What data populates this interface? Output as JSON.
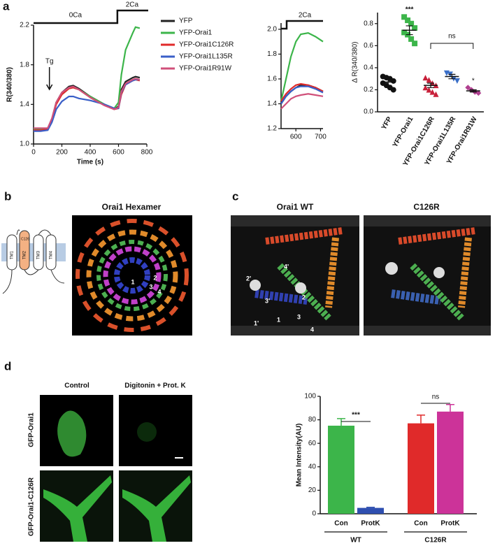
{
  "figure": {
    "panel_labels": [
      "a",
      "b",
      "c",
      "d"
    ],
    "b": {
      "title": "Orai1 Hexamer",
      "topology_labels": [
        "TM1",
        "TM2",
        "TM3",
        "TM4",
        "C126"
      ],
      "structure_labels": [
        "1",
        "2",
        "3",
        "4"
      ]
    },
    "c": {
      "titles": [
        "Orai1 WT",
        "C126R"
      ],
      "structure_labels": [
        "2'",
        "4'",
        "3'",
        "2",
        "1'",
        "1",
        "3",
        "4"
      ]
    },
    "d": {
      "column_titles": [
        "Control",
        "Digitonin + Prot. K"
      ],
      "row_labels": [
        "GFP-Orai1",
        "GFP-Orai1-C126R"
      ]
    }
  },
  "chart_data": [
    {
      "type": "line",
      "x_label": "Time (s)",
      "y_label": "R(340/380)",
      "annotations": [
        "0Ca",
        "2Ca",
        "Tg"
      ],
      "x": [
        0,
        50,
        100,
        130,
        160,
        200,
        250,
        280,
        320,
        400,
        500,
        570,
        600,
        620,
        650,
        700,
        720,
        750
      ],
      "xlim": [
        0,
        800
      ],
      "xticks": [
        0,
        200,
        400,
        600,
        800
      ],
      "ylim": [
        1.0,
        2.2
      ],
      "yticks": [
        {
          "value": 1.0,
          "label": "1.0"
        },
        1.4,
        1.8,
        2.2
      ],
      "series": [
        {
          "name": "YFP",
          "color": "#222222",
          "values": [
            1.15,
            1.15,
            1.15,
            1.25,
            1.42,
            1.52,
            1.58,
            1.59,
            1.56,
            1.48,
            1.4,
            1.35,
            1.38,
            1.55,
            1.63,
            1.67,
            1.68,
            1.67
          ]
        },
        {
          "name": "YFP-Orai1",
          "color": "#3cb54a",
          "values": [
            1.15,
            1.15,
            1.16,
            1.25,
            1.42,
            1.5,
            1.56,
            1.57,
            1.55,
            1.48,
            1.4,
            1.36,
            1.42,
            1.7,
            1.95,
            2.12,
            2.18,
            2.17
          ]
        },
        {
          "name": "YFP-Orai1C126R",
          "color": "#e02a2a",
          "values": [
            1.14,
            1.14,
            1.15,
            1.24,
            1.4,
            1.5,
            1.56,
            1.57,
            1.55,
            1.47,
            1.39,
            1.35,
            1.36,
            1.5,
            1.6,
            1.64,
            1.65,
            1.64
          ]
        },
        {
          "name": "YFP-Orai1L135R",
          "color": "#3a5fc8",
          "values": [
            1.13,
            1.13,
            1.14,
            1.22,
            1.35,
            1.43,
            1.48,
            1.48,
            1.46,
            1.44,
            1.4,
            1.36,
            1.36,
            1.52,
            1.6,
            1.64,
            1.65,
            1.65
          ]
        },
        {
          "name": "YFP-Orai1R91W",
          "color": "#d0507a",
          "values": [
            1.16,
            1.16,
            1.16,
            1.26,
            1.42,
            1.52,
            1.57,
            1.58,
            1.55,
            1.47,
            1.39,
            1.35,
            1.37,
            1.53,
            1.61,
            1.65,
            1.66,
            1.65
          ]
        }
      ]
    },
    {
      "type": "line",
      "annotations": [
        "2Ca"
      ],
      "x": [
        540,
        560,
        580,
        600,
        620,
        650,
        680,
        710
      ],
      "xlim": [
        540,
        710
      ],
      "xticks": [
        600,
        700
      ],
      "ylim": [
        1.2,
        2.05
      ],
      "yticks": [
        1.2,
        1.4,
        1.6,
        1.8,
        {
          "value": 2.0,
          "label": "2.0"
        }
      ],
      "series": [
        {
          "color": "#222222",
          "values": [
            1.4,
            1.46,
            1.5,
            1.53,
            1.55,
            1.55,
            1.53,
            1.5
          ]
        },
        {
          "color": "#3cb54a",
          "values": [
            1.42,
            1.6,
            1.78,
            1.9,
            1.96,
            1.97,
            1.94,
            1.9
          ]
        },
        {
          "color": "#e02a2a",
          "values": [
            1.42,
            1.48,
            1.52,
            1.55,
            1.56,
            1.55,
            1.53,
            1.5
          ]
        },
        {
          "color": "#3a5fc8",
          "values": [
            1.4,
            1.46,
            1.5,
            1.53,
            1.54,
            1.54,
            1.52,
            1.49
          ]
        },
        {
          "color": "#d0507a",
          "values": [
            1.36,
            1.4,
            1.44,
            1.46,
            1.47,
            1.48,
            1.47,
            1.46
          ]
        }
      ]
    },
    {
      "type": "dot",
      "y_label": "Δ R(340/380)",
      "annotations": [
        "***",
        "ns",
        "*"
      ],
      "categories": [
        "YFP",
        "YFP-Orai1",
        "YFP-Orai1C126R",
        "YFP-Orai1L135R",
        "YFP-Orai1R91W"
      ],
      "colors": [
        "#111111",
        "#3cb54a",
        "#c8203a",
        "#3a6fc8",
        "#b04090"
      ],
      "markers": [
        "circle",
        "square",
        "triangle",
        "triangle-down",
        "diamond"
      ],
      "points": [
        [
          0.32,
          0.31,
          0.3,
          0.28,
          0.26,
          0.24,
          0.22,
          0.2
        ],
        [
          0.86,
          0.83,
          0.8,
          0.76,
          0.72,
          0.7,
          0.66,
          0.62
        ],
        [
          0.31,
          0.29,
          0.26,
          0.24,
          0.22,
          0.2,
          0.18,
          0.16
        ],
        [
          0.35,
          0.34,
          0.3,
          0.28
        ],
        [
          0.22,
          0.2,
          0.18,
          0.17
        ]
      ],
      "means": [
        0.27,
        0.74,
        0.24,
        0.32,
        0.19
      ],
      "errors": [
        0.03,
        0.04,
        0.02,
        0.02,
        0.01
      ],
      "ylim": [
        0,
        0.9
      ],
      "yticks": [
        {
          "value": 0,
          "label": "0.0"
        },
        0.2,
        0.4,
        0.6,
        0.8
      ]
    },
    {
      "type": "bar",
      "y_label": "Mean Intensity(AU)",
      "annotations": [
        "***",
        "ns"
      ],
      "categories": [
        "Con",
        "ProtK",
        "Con",
        "ProtK"
      ],
      "group_labels": [
        "WT",
        "C126R"
      ],
      "values": [
        75,
        5,
        77,
        87
      ],
      "errors": [
        6,
        0.5,
        7,
        6
      ],
      "colors": [
        "#3cb54a",
        "#2f4fb0",
        "#e02a2a",
        "#cc3399"
      ],
      "ylim": [
        0,
        100
      ],
      "yticks": [
        0,
        20,
        40,
        60,
        80,
        100
      ]
    }
  ]
}
